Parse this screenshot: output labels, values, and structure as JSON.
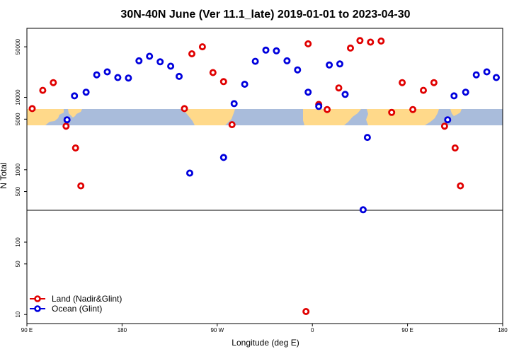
{
  "chart_data": {
    "type": "scatter",
    "title": "30N-40N June (Ver 11.1_late)   2019-01-01 to 2023-04-30",
    "xlabel": "Longitude (deg E)",
    "ylabel": "N Total",
    "yscale": "log",
    "ylim": [
      7.5,
      90000
    ],
    "x_ticks": [
      {
        "pos": 0,
        "label": "90 E"
      },
      {
        "pos": 90,
        "label": "180"
      },
      {
        "pos": 180,
        "label": "90 W"
      },
      {
        "pos": 270,
        "label": "0"
      },
      {
        "pos": 360,
        "label": "90 E"
      },
      {
        "pos": 450,
        "label": "180"
      }
    ],
    "y_ticks": [
      10,
      50,
      100,
      500,
      1000,
      5000,
      10000,
      50000
    ],
    "series": [
      {
        "name": "Land (Nadir&Glint)",
        "color": "#e00000",
        "points": [
          {
            "x": 5,
            "y": 7000
          },
          {
            "x": 15,
            "y": 12500
          },
          {
            "x": 25,
            "y": 16000
          },
          {
            "x": 37,
            "y": 4000
          },
          {
            "x": 46,
            "y": 2000
          },
          {
            "x": 51,
            "y": 600
          },
          {
            "x": 149,
            "y": 7000
          },
          {
            "x": 156,
            "y": 40000
          },
          {
            "x": 166,
            "y": 50000
          },
          {
            "x": 176,
            "y": 22000
          },
          {
            "x": 186,
            "y": 16500
          },
          {
            "x": 194,
            "y": 4200
          },
          {
            "x": 264,
            "y": 11
          },
          {
            "x": 266,
            "y": 55000
          },
          {
            "x": 276,
            "y": 8000
          },
          {
            "x": 284,
            "y": 6800
          },
          {
            "x": 295,
            "y": 13500
          },
          {
            "x": 306,
            "y": 48000
          },
          {
            "x": 315,
            "y": 61000
          },
          {
            "x": 325,
            "y": 58000
          },
          {
            "x": 335,
            "y": 60000
          },
          {
            "x": 345,
            "y": 6200
          },
          {
            "x": 355,
            "y": 16000
          },
          {
            "x": 365,
            "y": 6800
          },
          {
            "x": 375,
            "y": 12500
          },
          {
            "x": 385,
            "y": 16000
          },
          {
            "x": 395,
            "y": 4000
          },
          {
            "x": 405,
            "y": 2000
          },
          {
            "x": 410,
            "y": 600
          }
        ]
      },
      {
        "name": "Ocean (Glint)",
        "color": "#0000dd",
        "points": [
          {
            "x": 38,
            "y": 4900
          },
          {
            "x": 45,
            "y": 10500
          },
          {
            "x": 56,
            "y": 11800
          },
          {
            "x": 66,
            "y": 20500
          },
          {
            "x": 76,
            "y": 22500
          },
          {
            "x": 86,
            "y": 18800
          },
          {
            "x": 96,
            "y": 18500
          },
          {
            "x": 106,
            "y": 32000
          },
          {
            "x": 116,
            "y": 37000
          },
          {
            "x": 126,
            "y": 31000
          },
          {
            "x": 136,
            "y": 27000
          },
          {
            "x": 144,
            "y": 19500
          },
          {
            "x": 154,
            "y": 900
          },
          {
            "x": 186,
            "y": 1480
          },
          {
            "x": 196,
            "y": 8200
          },
          {
            "x": 206,
            "y": 15200
          },
          {
            "x": 216,
            "y": 31500
          },
          {
            "x": 226,
            "y": 45000
          },
          {
            "x": 236,
            "y": 44000
          },
          {
            "x": 246,
            "y": 32000
          },
          {
            "x": 256,
            "y": 24000
          },
          {
            "x": 266,
            "y": 11800
          },
          {
            "x": 276,
            "y": 7500
          },
          {
            "x": 286,
            "y": 28000
          },
          {
            "x": 296,
            "y": 29000
          },
          {
            "x": 301,
            "y": 11000
          },
          {
            "x": 318,
            "y": 280
          },
          {
            "x": 322,
            "y": 2800
          },
          {
            "x": 398,
            "y": 4900
          },
          {
            "x": 404,
            "y": 10500
          },
          {
            "x": 415,
            "y": 11800
          },
          {
            "x": 425,
            "y": 20500
          },
          {
            "x": 435,
            "y": 22500
          },
          {
            "x": 444,
            "y": 18800
          }
        ]
      }
    ],
    "legend": {
      "placement": "bottom-left",
      "entries": [
        "Land (Nadir&Glint)",
        "Ocean (Glint)"
      ]
    }
  }
}
